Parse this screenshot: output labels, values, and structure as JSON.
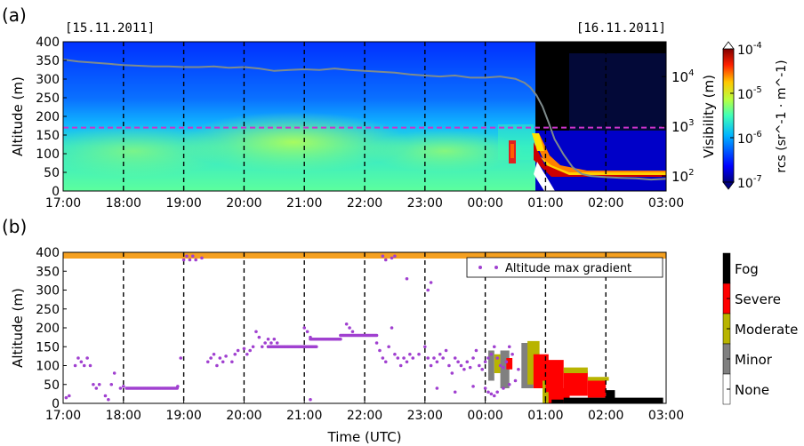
{
  "colors": {
    "profile_line": "#7f8c8d",
    "threshold_line": "#cc33cc",
    "gradient_points": "#a040d0",
    "fog": "#000000",
    "severe": "#ff0000",
    "moderate": "#b8b400",
    "minor": "#808080",
    "none": "#ffffff",
    "top_band": "#f5a020"
  },
  "chart_data": [
    {
      "panel_label": "(a)",
      "type": "heatmap",
      "date_left": "[15.11.2011]",
      "date_right": "[16.11.2011]",
      "ylabel": "Altitude (m)",
      "y2label": "Visibility (m)",
      "xlabel": "",
      "x_ticks": [
        "17:00",
        "18:00",
        "19:00",
        "20:00",
        "21:00",
        "22:00",
        "23:00",
        "00:00",
        "01:00",
        "02:00",
        "03:00"
      ],
      "y_ticks": [
        0,
        50,
        100,
        150,
        200,
        250,
        300,
        350,
        400
      ],
      "ylim": [
        0,
        400
      ],
      "y2_ticks": [
        "10^2",
        "10^3",
        "10^4"
      ],
      "y2lim": [
        50,
        50000
      ],
      "y2_scale": "log",
      "dashed_vertical_gridlines": [
        "18:00",
        "19:00",
        "20:00",
        "21:00",
        "22:00",
        "23:00",
        "00:00",
        "01:00",
        "02:00"
      ],
      "threshold_altitude": 170,
      "colorbar": {
        "label": "rcs (sr^-1 · m^-1)",
        "ticks": [
          "10^-4",
          "10^-5",
          "10^-6",
          "10^-7"
        ],
        "range": [
          1e-07,
          0.0001
        ],
        "scale": "log",
        "colormap": "jet"
      },
      "visibility_series": {
        "name": "Visibility",
        "x_hours": [
          0,
          0.25,
          0.5,
          0.75,
          1,
          1.25,
          1.5,
          1.75,
          2,
          2.25,
          2.5,
          2.75,
          3,
          3.25,
          3.5,
          3.75,
          4,
          4.25,
          4.5,
          4.75,
          5,
          5.25,
          5.5,
          5.75,
          6,
          6.25,
          6.5,
          6.75,
          7,
          7.25,
          7.5,
          7.65,
          7.75,
          7.85,
          7.95,
          8.05,
          8.15,
          8.3,
          8.45,
          8.6,
          8.75,
          9,
          9.25,
          9.5,
          9.75,
          10
        ],
        "visibility_m": [
          22000,
          20000,
          19000,
          18000,
          17000,
          16500,
          16000,
          16000,
          15500,
          15500,
          16000,
          15000,
          15500,
          14500,
          13000,
          13500,
          14000,
          13500,
          14500,
          13500,
          13000,
          12500,
          12000,
          11000,
          10500,
          10000,
          10500,
          9500,
          9500,
          10000,
          9000,
          7500,
          6000,
          4200,
          2500,
          1200,
          550,
          270,
          150,
          110,
          100,
          95,
          92,
          90,
          85,
          88
        ]
      }
    },
    {
      "panel_label": "(b)",
      "type": "heatmap",
      "ylabel": "Altitude (m)",
      "xlabel": "Time (UTC)",
      "x_ticks": [
        "17:00",
        "18:00",
        "19:00",
        "20:00",
        "21:00",
        "22:00",
        "23:00",
        "00:00",
        "01:00",
        "02:00",
        "03:00"
      ],
      "y_ticks": [
        0,
        50,
        100,
        150,
        200,
        250,
        300,
        350,
        400
      ],
      "ylim": [
        0,
        400
      ],
      "dashed_vertical_gridlines": [
        "18:00",
        "19:00",
        "20:00",
        "21:00",
        "22:00",
        "23:00",
        "00:00",
        "01:00",
        "02:00"
      ],
      "legend": {
        "entries": [
          "Altitude max gradient"
        ],
        "placement": "top-right"
      },
      "categories": [
        "Fog",
        "Severe",
        "Moderate",
        "Minor",
        "None"
      ],
      "gradient_series": {
        "name": "Altitude max gradient",
        "segments": [
          {
            "x_from": 1.05,
            "x_to": 1.9,
            "y": 40
          },
          {
            "x_from": 3.4,
            "x_to": 4.2,
            "y": 150
          },
          {
            "x_from": 4.1,
            "x_to": 4.6,
            "y": 170
          },
          {
            "x_from": 4.6,
            "x_to": 5.2,
            "y": 180
          }
        ],
        "points": [
          [
            0.05,
            15
          ],
          [
            0.1,
            20
          ],
          [
            0.2,
            100
          ],
          [
            0.25,
            120
          ],
          [
            0.3,
            110
          ],
          [
            0.35,
            100
          ],
          [
            0.4,
            120
          ],
          [
            0.45,
            100
          ],
          [
            0.5,
            50
          ],
          [
            0.55,
            40
          ],
          [
            0.6,
            50
          ],
          [
            0.7,
            20
          ],
          [
            0.75,
            10
          ],
          [
            0.8,
            50
          ],
          [
            0.85,
            80
          ],
          [
            0.95,
            40
          ],
          [
            1,
            45
          ],
          [
            1.9,
            45
          ],
          [
            1.95,
            120
          ],
          [
            2,
            380
          ],
          [
            2.05,
            390
          ],
          [
            2.1,
            380
          ],
          [
            2.15,
            390
          ],
          [
            2.2,
            380
          ],
          [
            2.3,
            385
          ],
          [
            2.4,
            110
          ],
          [
            2.45,
            120
          ],
          [
            2.5,
            130
          ],
          [
            2.55,
            100
          ],
          [
            2.6,
            120
          ],
          [
            2.65,
            110
          ],
          [
            2.7,
            125
          ],
          [
            2.8,
            110
          ],
          [
            2.85,
            130
          ],
          [
            2.9,
            140
          ],
          [
            3,
            145
          ],
          [
            3.05,
            130
          ],
          [
            3.1,
            140
          ],
          [
            3.15,
            150
          ],
          [
            3.2,
            190
          ],
          [
            3.25,
            175
          ],
          [
            3.3,
            150
          ],
          [
            3.35,
            160
          ],
          [
            4,
            200
          ],
          [
            4.05,
            190
          ],
          [
            4.1,
            175
          ],
          [
            4.7,
            210
          ],
          [
            4.75,
            200
          ],
          [
            4.8,
            190
          ],
          [
            5.2,
            160
          ],
          [
            5.25,
            140
          ],
          [
            5.3,
            120
          ],
          [
            5.35,
            110
          ],
          [
            5.4,
            150
          ],
          [
            5.45,
            200
          ],
          [
            5.5,
            130
          ],
          [
            5.55,
            120
          ],
          [
            5.6,
            100
          ],
          [
            5.65,
            120
          ],
          [
            5.7,
            110
          ],
          [
            5.75,
            130
          ],
          [
            5.8,
            120
          ],
          [
            5.9,
            130
          ],
          [
            6,
            150
          ],
          [
            6.05,
            120
          ],
          [
            6.1,
            100
          ],
          [
            6.15,
            120
          ],
          [
            6.2,
            110
          ],
          [
            6.25,
            130
          ],
          [
            6.3,
            120
          ],
          [
            6.35,
            140
          ],
          [
            6.4,
            100
          ],
          [
            6.45,
            80
          ],
          [
            6.5,
            120
          ],
          [
            6.55,
            110
          ],
          [
            6.6,
            100
          ],
          [
            6.65,
            90
          ],
          [
            6.7,
            110
          ],
          [
            6.75,
            95
          ],
          [
            6.8,
            120
          ],
          [
            6.85,
            140
          ],
          [
            6.9,
            100
          ],
          [
            6.95,
            90
          ],
          [
            7,
            110
          ],
          [
            7.05,
            120
          ],
          [
            7.1,
            130
          ],
          [
            7.15,
            150
          ],
          [
            7.2,
            120
          ],
          [
            7.25,
            100
          ],
          [
            7.3,
            95
          ],
          [
            7.35,
            110
          ],
          [
            7.4,
            150
          ],
          [
            7.45,
            130
          ],
          [
            5.3,
            390
          ],
          [
            5.35,
            380
          ],
          [
            5.45,
            385
          ],
          [
            5.5,
            390
          ],
          [
            5.7,
            330
          ],
          [
            6.05,
            300
          ],
          [
            6.1,
            320
          ],
          [
            3.4,
            170
          ],
          [
            3.45,
            160
          ],
          [
            3.5,
            170
          ],
          [
            3.55,
            160
          ],
          [
            7,
            40
          ],
          [
            7.05,
            30
          ],
          [
            7.1,
            25
          ],
          [
            7.15,
            20
          ],
          [
            7.2,
            30
          ],
          [
            7.3,
            40
          ],
          [
            7.4,
            50
          ],
          [
            7.5,
            60
          ],
          [
            7.55,
            90
          ],
          [
            6.2,
            40
          ],
          [
            6.5,
            30
          ],
          [
            6.8,
            45
          ],
          [
            4.1,
            10
          ]
        ]
      },
      "alert_cells": [
        {
          "x": 7.05,
          "x2": 7.15,
          "y": 60,
          "y2": 140,
          "cat": "Minor"
        },
        {
          "x": 7.15,
          "x2": 7.25,
          "y": 80,
          "y2": 130,
          "cat": "Moderate"
        },
        {
          "x": 7.25,
          "x2": 7.4,
          "y": 40,
          "y2": 140,
          "cat": "Minor"
        },
        {
          "x": 7.35,
          "x2": 7.45,
          "y": 90,
          "y2": 120,
          "cat": "Severe"
        },
        {
          "x": 7.6,
          "x2": 7.8,
          "y": 40,
          "y2": 160,
          "cat": "Minor"
        },
        {
          "x": 7.7,
          "x2": 7.9,
          "y": 50,
          "y2": 165,
          "cat": "Moderate"
        },
        {
          "x": 7.8,
          "x2": 8.05,
          "y": 40,
          "y2": 130,
          "cat": "Severe"
        },
        {
          "x": 7.95,
          "x2": 8.1,
          "y": 0,
          "y2": 60,
          "cat": "Moderate"
        },
        {
          "x": 8,
          "x2": 8.3,
          "y": 30,
          "y2": 115,
          "cat": "Severe"
        },
        {
          "x": 8.05,
          "x2": 8.4,
          "y": 0,
          "y2": 40,
          "cat": "Severe"
        },
        {
          "x": 8.3,
          "x2": 8.7,
          "y": 20,
          "y2": 85,
          "cat": "Severe"
        },
        {
          "x": 8.3,
          "x2": 8.7,
          "y": 80,
          "y2": 95,
          "cat": "Moderate"
        },
        {
          "x": 8.7,
          "x2": 9,
          "y": 15,
          "y2": 60,
          "cat": "Severe"
        },
        {
          "x": 8.7,
          "x2": 9.05,
          "y": 60,
          "y2": 70,
          "cat": "Moderate"
        },
        {
          "x": 9,
          "x2": 9.15,
          "y": 10,
          "y2": 35,
          "cat": "Fog"
        },
        {
          "x": 8.3,
          "x2": 9.95,
          "y": 0,
          "y2": 15,
          "cat": "Fog"
        },
        {
          "x": 8.1,
          "x2": 8.3,
          "y": 0,
          "y2": 10,
          "cat": "Fog"
        }
      ]
    }
  ]
}
